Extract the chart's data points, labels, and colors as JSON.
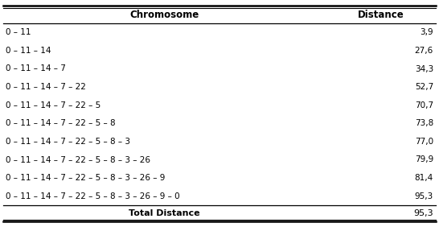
{
  "headers": [
    "Chromosome",
    "Distance"
  ],
  "rows": [
    [
      "0 – 11",
      "3,9"
    ],
    [
      "0 – 11 – 14",
      "27,6"
    ],
    [
      "0 – 11 – 14 – 7",
      "34,3"
    ],
    [
      "0 – 11 – 14 – 7 – 22",
      "52,7"
    ],
    [
      "0 – 11 – 14 – 7 – 22 – 5",
      "70,7"
    ],
    [
      "0 – 11 – 14 – 7 – 22 – 5 – 8",
      "73,8"
    ],
    [
      "0 – 11 – 14 – 7 – 22 – 5 – 8 – 3",
      "77,0"
    ],
    [
      "0 – 11 – 14 – 7 – 22 – 5 – 8 – 3 – 26",
      "79,9"
    ],
    [
      "0 – 11 – 14 – 7 – 22 – 5 – 8 – 3 – 26 – 9",
      "81,4"
    ],
    [
      "0 – 11 – 14 – 7 – 22 – 5 – 8 – 3 – 26 – 9 – 0",
      "95,3"
    ]
  ],
  "footer": [
    "Total Distance",
    "95,3"
  ],
  "header_fontsize": 8.5,
  "row_fontsize": 7.5,
  "footer_fontsize": 8.0,
  "background_color": "#ffffff"
}
